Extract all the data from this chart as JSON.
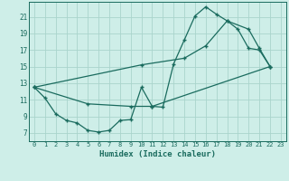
{
  "title": "",
  "xlabel": "Humidex (Indice chaleur)",
  "bg_color": "#ceeee8",
  "line_color": "#1a6b5e",
  "grid_color": "#aad4cc",
  "xlim": [
    -0.5,
    23.5
  ],
  "ylim": [
    6.0,
    22.8
  ],
  "xticks": [
    0,
    1,
    2,
    3,
    4,
    5,
    6,
    7,
    8,
    9,
    10,
    11,
    12,
    13,
    14,
    15,
    16,
    17,
    18,
    19,
    20,
    21,
    22,
    23
  ],
  "yticks": [
    7,
    9,
    11,
    13,
    15,
    17,
    19,
    21
  ],
  "line1_x": [
    0,
    1,
    2,
    3,
    4,
    5,
    6,
    7,
    8,
    9,
    10,
    11,
    12,
    13,
    14,
    15,
    16,
    17,
    18,
    19,
    20,
    21,
    22
  ],
  "line1_y": [
    12.5,
    11.2,
    9.3,
    8.5,
    8.2,
    7.3,
    7.1,
    7.3,
    8.5,
    8.6,
    12.5,
    10.2,
    10.1,
    15.3,
    18.2,
    21.1,
    22.2,
    21.3,
    20.5,
    19.5,
    17.2,
    17.0,
    15.0
  ],
  "line2_x": [
    0,
    10,
    14,
    16,
    18,
    20,
    21,
    22
  ],
  "line2_y": [
    12.5,
    15.2,
    16.0,
    17.5,
    20.5,
    19.5,
    17.2,
    15.0
  ],
  "line3_x": [
    0,
    5,
    9,
    11,
    22
  ],
  "line3_y": [
    12.5,
    10.5,
    10.2,
    10.2,
    15.0
  ]
}
